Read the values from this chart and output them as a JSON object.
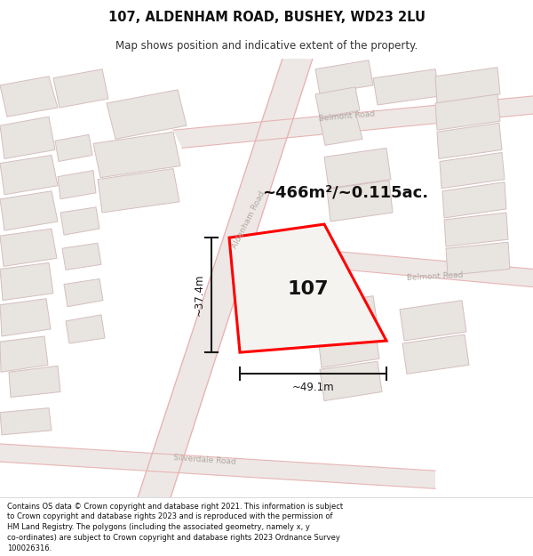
{
  "title": "107, ALDENHAM ROAD, BUSHEY, WD23 2LU",
  "subtitle": "Map shows position and indicative extent of the property.",
  "footer": "Contains OS data © Crown copyright and database right 2021. This information is subject to Crown copyright and database rights 2023 and is reproduced with the permission of HM Land Registry. The polygons (including the associated geometry, namely x, y co-ordinates) are subject to Crown copyright and database rights 2023 Ordnance Survey 100026316.",
  "area_label": "~466m²/~0.115ac.",
  "number_label": "107",
  "width_label": "~49.1m",
  "height_label": "~37.4m",
  "map_bg": "#f2f0ee",
  "road_fill": "#ede8e5",
  "road_edge": "#e8b4b4",
  "building_fill": "#e8e4e0",
  "building_edge": "#d4bfbf",
  "road_label_color": "#b0a8a0",
  "highlight_fill": "#f5f3f0",
  "highlight_outline": "#ff0000",
  "dimension_color": "#1a1a1a",
  "title_color": "#111111",
  "footer_color": "#111111"
}
